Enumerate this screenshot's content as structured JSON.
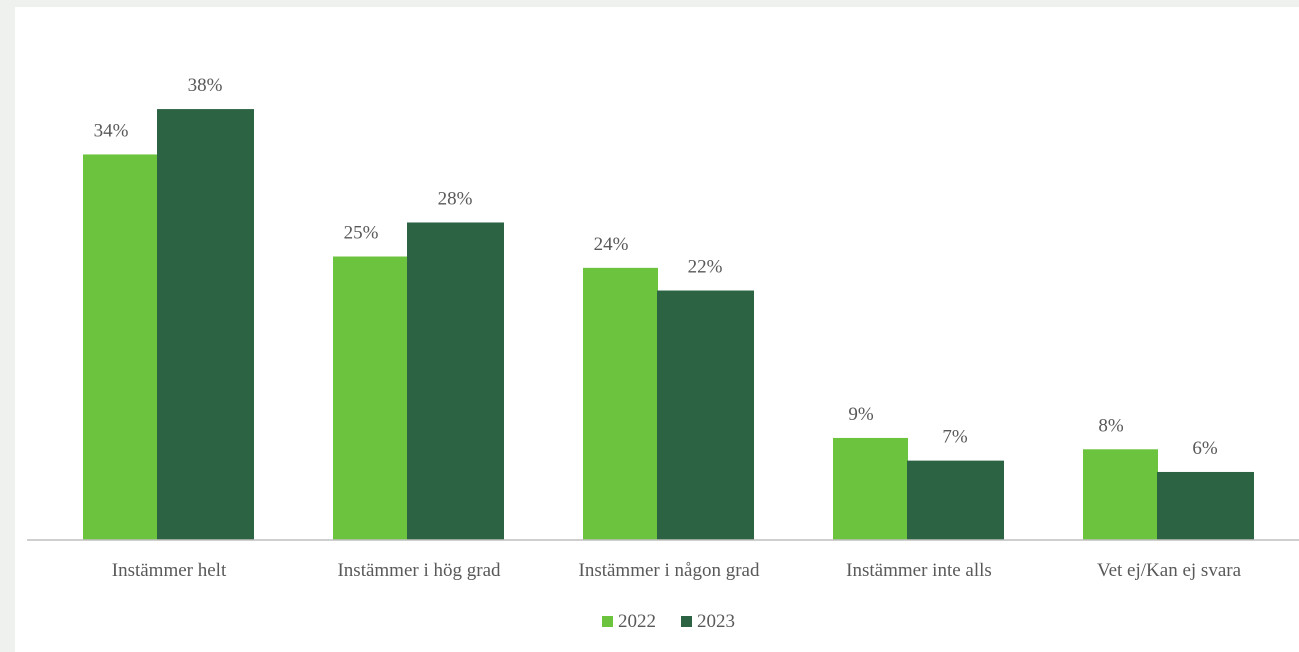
{
  "chart_data": {
    "type": "bar",
    "categories": [
      "Instämmer helt",
      "Instämmer i hög grad",
      "Instämmer i någon grad",
      "Instämmer inte alls",
      "Vet ej/Kan ej svara"
    ],
    "series": [
      {
        "name": "2022",
        "color": "#6cc33e",
        "values": [
          34,
          25,
          24,
          9,
          8
        ],
        "labels": [
          "34%",
          "25%",
          "24%",
          "9%",
          "8%"
        ]
      },
      {
        "name": "2023",
        "color": "#2b6343",
        "values": [
          38,
          28,
          22,
          7,
          6
        ],
        "labels": [
          "38%",
          "28%",
          "22%",
          "7%",
          "6%"
        ]
      }
    ],
    "ylim": [
      0,
      40
    ],
    "grid": false,
    "legend": "bottom-center",
    "title": "",
    "xlabel": "",
    "ylabel": ""
  }
}
